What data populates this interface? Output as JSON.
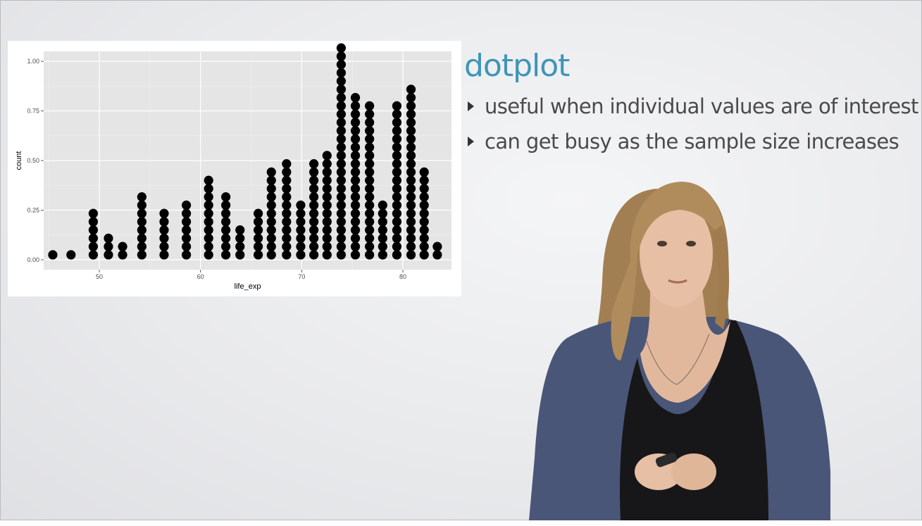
{
  "slide": {
    "title": "dotplot",
    "bullets": [
      "useful when individual values are of interest",
      "can get busy as the sample size increases"
    ]
  },
  "chart_data": {
    "type": "scatter",
    "style": "dotplot",
    "xlabel": "life_exp",
    "ylabel": "count",
    "x_ticks": [
      50,
      60,
      70,
      80
    ],
    "y_ticks": [
      "0.00",
      "0.25",
      "0.50",
      "0.75",
      "1.00"
    ],
    "xlim": [
      44.5,
      84.8
    ],
    "ylim": [
      -0.05,
      1.05
    ],
    "grid": true,
    "panel_color": "#e5e5e5",
    "dot_color": "#000000",
    "stacks": [
      {
        "x": 45.4,
        "count": 1
      },
      {
        "x": 47.2,
        "count": 1
      },
      {
        "x": 49.4,
        "count": 6
      },
      {
        "x": 50.9,
        "count": 3
      },
      {
        "x": 52.3,
        "count": 2
      },
      {
        "x": 54.2,
        "count": 8
      },
      {
        "x": 56.4,
        "count": 6
      },
      {
        "x": 58.6,
        "count": 7
      },
      {
        "x": 60.8,
        "count": 10
      },
      {
        "x": 62.5,
        "count": 8
      },
      {
        "x": 63.9,
        "count": 4
      },
      {
        "x": 65.7,
        "count": 6
      },
      {
        "x": 67.0,
        "count": 11
      },
      {
        "x": 68.5,
        "count": 12
      },
      {
        "x": 69.9,
        "count": 7
      },
      {
        "x": 71.2,
        "count": 12
      },
      {
        "x": 72.5,
        "count": 13
      },
      {
        "x": 73.9,
        "count": 26
      },
      {
        "x": 75.3,
        "count": 20
      },
      {
        "x": 76.7,
        "count": 19
      },
      {
        "x": 78.0,
        "count": 7
      },
      {
        "x": 79.4,
        "count": 19
      },
      {
        "x": 80.8,
        "count": 21
      },
      {
        "x": 82.1,
        "count": 11
      },
      {
        "x": 83.4,
        "count": 2
      }
    ]
  }
}
